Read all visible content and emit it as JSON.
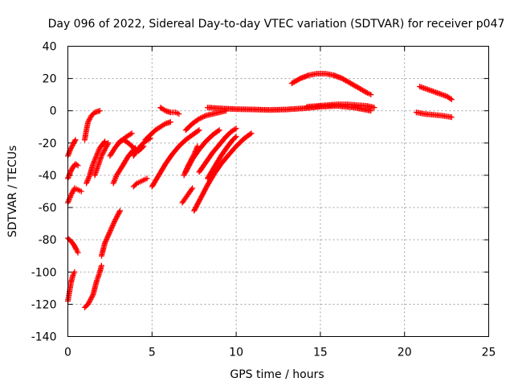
{
  "chart_data": {
    "type": "scatter",
    "title": "Day 096 of 2022, Sidereal Day-to-day VTEC variation (SDTVAR) for receiver p047",
    "xlabel": "GPS time / hours",
    "ylabel": "SDTVAR / TECUs",
    "xlim": [
      0,
      25
    ],
    "ylim": [
      -140,
      40
    ],
    "xticks": [
      "0",
      "5",
      "10",
      "15",
      "20",
      "25"
    ],
    "yticks": [
      "40",
      "20",
      "0",
      "-20",
      "-40",
      "-60",
      "-80",
      "-100",
      "-120",
      "-140"
    ],
    "grid": true,
    "marker": "+",
    "color": "#ff0000",
    "series": [
      {
        "name": "s1",
        "points": [
          [
            0.0,
            -118
          ],
          [
            0.1,
            -112
          ],
          [
            0.2,
            -106
          ],
          [
            0.3,
            -102
          ],
          [
            0.4,
            -100
          ]
        ]
      },
      {
        "name": "s2",
        "points": [
          [
            0.0,
            -79
          ],
          [
            0.2,
            -81
          ],
          [
            0.35,
            -83
          ],
          [
            0.5,
            -86
          ],
          [
            0.6,
            -88
          ]
        ]
      },
      {
        "name": "s3",
        "points": [
          [
            0.0,
            -57
          ],
          [
            0.2,
            -52
          ],
          [
            0.4,
            -48
          ],
          [
            0.6,
            -49
          ],
          [
            0.8,
            -50
          ]
        ]
      },
      {
        "name": "s4",
        "points": [
          [
            0.0,
            -42
          ],
          [
            0.15,
            -38
          ],
          [
            0.3,
            -35
          ],
          [
            0.45,
            -33
          ],
          [
            0.6,
            -34
          ]
        ]
      },
      {
        "name": "s5",
        "points": [
          [
            0.0,
            -28
          ],
          [
            0.15,
            -24
          ],
          [
            0.3,
            -21
          ],
          [
            0.45,
            -18
          ]
        ]
      },
      {
        "name": "s6",
        "points": [
          [
            1.0,
            -122
          ],
          [
            1.2,
            -120
          ],
          [
            1.5,
            -114
          ],
          [
            1.7,
            -106
          ],
          [
            1.9,
            -100
          ],
          [
            2.0,
            -96
          ]
        ]
      },
      {
        "name": "s7",
        "points": [
          [
            2.0,
            -90
          ],
          [
            2.2,
            -82
          ],
          [
            2.5,
            -75
          ],
          [
            2.8,
            -68
          ],
          [
            3.1,
            -62
          ]
        ]
      },
      {
        "name": "s8",
        "points": [
          [
            1.1,
            -45
          ],
          [
            1.3,
            -40
          ],
          [
            1.5,
            -33
          ],
          [
            1.7,
            -28
          ],
          [
            1.9,
            -23
          ],
          [
            2.2,
            -19
          ]
        ]
      },
      {
        "name": "s9",
        "points": [
          [
            1.0,
            -18
          ],
          [
            1.1,
            -12
          ],
          [
            1.2,
            -7
          ],
          [
            1.4,
            -3
          ],
          [
            1.6,
            -1
          ],
          [
            1.9,
            0
          ]
        ]
      },
      {
        "name": "s10",
        "points": [
          [
            1.6,
            -40
          ],
          [
            1.8,
            -34
          ],
          [
            2.0,
            -28
          ],
          [
            2.2,
            -24
          ],
          [
            2.4,
            -20
          ]
        ]
      },
      {
        "name": "s11",
        "points": [
          [
            2.7,
            -45
          ],
          [
            2.9,
            -40
          ],
          [
            3.2,
            -35
          ],
          [
            3.6,
            -28
          ],
          [
            4.0,
            -23
          ]
        ]
      },
      {
        "name": "s12",
        "points": [
          [
            2.5,
            -28
          ],
          [
            2.8,
            -23
          ],
          [
            3.1,
            -19
          ],
          [
            3.5,
            -16
          ],
          [
            3.8,
            -14
          ]
        ]
      },
      {
        "name": "s13",
        "points": [
          [
            3.0,
            -20
          ],
          [
            3.3,
            -18
          ],
          [
            3.6,
            -20
          ],
          [
            3.9,
            -23
          ],
          [
            4.2,
            -25
          ],
          [
            4.5,
            -22
          ]
        ]
      },
      {
        "name": "s14",
        "points": [
          [
            3.9,
            -47
          ],
          [
            4.1,
            -45
          ],
          [
            4.3,
            -44
          ],
          [
            4.5,
            -43
          ],
          [
            4.7,
            -42
          ]
        ]
      },
      {
        "name": "s15",
        "points": [
          [
            3.9,
            -28
          ],
          [
            4.1,
            -25
          ],
          [
            4.3,
            -22
          ],
          [
            4.6,
            -19
          ],
          [
            4.9,
            -17
          ]
        ]
      },
      {
        "name": "s16",
        "points": [
          [
            4.6,
            -18
          ],
          [
            4.9,
            -15
          ],
          [
            5.2,
            -12
          ],
          [
            5.5,
            -10
          ],
          [
            5.8,
            -8
          ],
          [
            6.1,
            -7
          ]
        ]
      },
      {
        "name": "s17",
        "points": [
          [
            5.0,
            -47
          ],
          [
            5.4,
            -40
          ],
          [
            5.8,
            -33
          ],
          [
            6.2,
            -27
          ],
          [
            6.6,
            -22
          ],
          [
            7.0,
            -18
          ],
          [
            7.4,
            -15
          ],
          [
            7.8,
            -12
          ]
        ]
      },
      {
        "name": "s18",
        "points": [
          [
            5.5,
            2
          ],
          [
            5.8,
            0
          ],
          [
            6.1,
            -1
          ],
          [
            6.4,
            -1
          ],
          [
            6.6,
            -2
          ]
        ]
      },
      {
        "name": "s19",
        "points": [
          [
            6.8,
            -57
          ],
          [
            7.0,
            -54
          ],
          [
            7.2,
            -51
          ],
          [
            7.4,
            -48
          ]
        ]
      },
      {
        "name": "s20",
        "points": [
          [
            6.9,
            -40
          ],
          [
            7.1,
            -35
          ],
          [
            7.3,
            -31
          ],
          [
            7.5,
            -27
          ],
          [
            7.7,
            -22
          ]
        ]
      },
      {
        "name": "s21",
        "points": [
          [
            7.0,
            -38
          ],
          [
            7.4,
            -30
          ],
          [
            7.8,
            -24
          ],
          [
            8.2,
            -19
          ],
          [
            8.6,
            -15
          ],
          [
            9.0,
            -12
          ]
        ]
      },
      {
        "name": "s22",
        "points": [
          [
            7.0,
            -12
          ],
          [
            7.4,
            -8
          ],
          [
            7.8,
            -5
          ],
          [
            8.2,
            -3
          ],
          [
            8.6,
            -2
          ],
          [
            9.0,
            -1
          ],
          [
            9.4,
            0
          ]
        ]
      },
      {
        "name": "s23",
        "points": [
          [
            7.5,
            -62
          ],
          [
            7.9,
            -54
          ],
          [
            8.3,
            -46
          ],
          [
            8.7,
            -39
          ],
          [
            9.1,
            -33
          ],
          [
            9.5,
            -28
          ],
          [
            10.0,
            -22
          ],
          [
            10.5,
            -17
          ],
          [
            10.9,
            -14
          ]
        ]
      },
      {
        "name": "s24",
        "points": [
          [
            7.8,
            -38
          ],
          [
            8.2,
            -32
          ],
          [
            8.6,
            -26
          ],
          [
            9.0,
            -21
          ],
          [
            9.4,
            -16
          ],
          [
            9.7,
            -13
          ],
          [
            10.0,
            -11
          ]
        ]
      },
      {
        "name": "s25",
        "points": [
          [
            8.3,
            -42
          ],
          [
            8.7,
            -35
          ],
          [
            9.1,
            -28
          ],
          [
            9.5,
            -22
          ],
          [
            9.8,
            -18
          ],
          [
            10.0,
            -16
          ]
        ]
      },
      {
        "name": "s26",
        "points": [
          [
            8.3,
            2
          ],
          [
            9.0,
            1.5
          ],
          [
            10.0,
            1
          ],
          [
            11.0,
            0.8
          ],
          [
            12.0,
            0.5
          ],
          [
            13.0,
            0.8
          ],
          [
            14.0,
            1.5
          ],
          [
            15.0,
            2.5
          ],
          [
            16.0,
            3
          ],
          [
            17.0,
            2
          ],
          [
            18.0,
            0
          ]
        ]
      },
      {
        "name": "s27",
        "points": [
          [
            13.3,
            17
          ],
          [
            13.8,
            20
          ],
          [
            14.3,
            22
          ],
          [
            14.8,
            23
          ],
          [
            15.3,
            23
          ],
          [
            15.8,
            22
          ],
          [
            16.3,
            20
          ],
          [
            16.8,
            17
          ],
          [
            17.3,
            14
          ],
          [
            17.8,
            11
          ],
          [
            18.0,
            10
          ]
        ]
      },
      {
        "name": "s28",
        "points": [
          [
            14.2,
            2.5
          ],
          [
            14.8,
            3
          ],
          [
            15.4,
            3.5
          ],
          [
            16.0,
            4
          ],
          [
            16.6,
            4
          ],
          [
            17.2,
            3.5
          ],
          [
            17.8,
            3
          ],
          [
            18.2,
            2
          ]
        ]
      },
      {
        "name": "s29",
        "points": [
          [
            20.7,
            -1
          ],
          [
            21.2,
            -2
          ],
          [
            21.7,
            -2.5
          ],
          [
            22.2,
            -3
          ],
          [
            22.8,
            -4
          ]
        ]
      },
      {
        "name": "s30",
        "points": [
          [
            20.9,
            15
          ],
          [
            21.3,
            13.5
          ],
          [
            21.7,
            12
          ],
          [
            22.1,
            10.5
          ],
          [
            22.5,
            9
          ],
          [
            22.8,
            7
          ]
        ]
      }
    ]
  }
}
